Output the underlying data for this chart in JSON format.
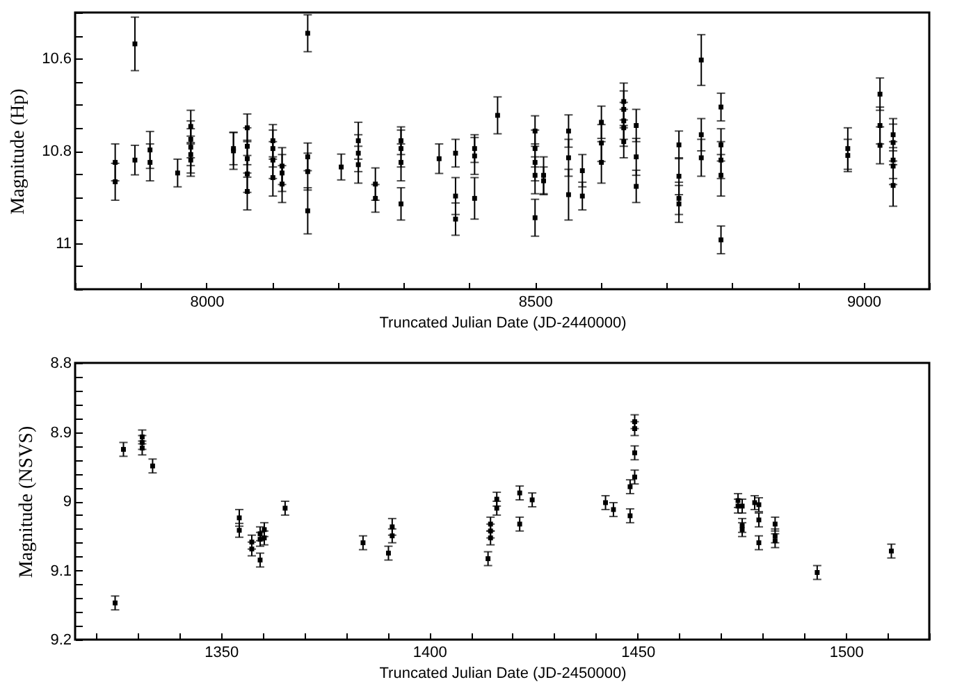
{
  "chart_data": [
    {
      "type": "scatter",
      "xlabel": "Truncated Julian Date (JD-2440000)",
      "ylabel": "Magnitude (Hp)",
      "marker": "square",
      "xlim": [
        7800,
        9100
      ],
      "ylim": [
        11.1,
        10.5
      ],
      "xticks": [
        {
          "value": 7800,
          "label": null
        },
        {
          "value": 7900,
          "label": null
        },
        8000,
        {
          "value": 8100,
          "label": null
        },
        {
          "value": 8200,
          "label": null
        },
        {
          "value": 8300,
          "label": null
        },
        {
          "value": 8400,
          "label": null
        },
        8500,
        {
          "value": 8600,
          "label": null
        },
        {
          "value": 8700,
          "label": null
        },
        {
          "value": 8800,
          "label": null
        },
        {
          "value": 8900,
          "label": null
        },
        9000,
        {
          "value": 9100,
          "label": null
        }
      ],
      "yticks": [
        {
          "value": 10.5,
          "label": null
        },
        {
          "value": 10.55,
          "label": null
        },
        10.6,
        {
          "value": 10.65,
          "label": null
        },
        {
          "value": 10.7,
          "label": null
        },
        {
          "value": 10.75,
          "label": null
        },
        10.8,
        {
          "value": 10.85,
          "label": null
        },
        {
          "value": 10.9,
          "label": null
        },
        {
          "value": 10.95,
          "label": null
        },
        11,
        {
          "value": 11.05,
          "label": null
        },
        {
          "value": 11.1,
          "label": null
        }
      ],
      "series": [
        {
          "color": "#000000",
          "x": [
            7861,
            7861,
            7891,
            7891,
            7914,
            7914,
            7956,
            7976,
            7976,
            7976,
            7976,
            7976,
            8041,
            8041,
            8062,
            8062,
            8062,
            8062,
            8062,
            8101,
            8101,
            8101,
            8101,
            8115,
            8115,
            8115,
            8154,
            8154,
            8154,
            8154,
            8205,
            8231,
            8231,
            8231,
            8257,
            8257,
            8296,
            8296,
            8296,
            8296,
            8354,
            8379,
            8379,
            8379,
            8408,
            8408,
            8408,
            8443,
            8500,
            8500,
            8500,
            8500,
            8500,
            8513,
            8513,
            8551,
            8551,
            8551,
            8572,
            8572,
            8601,
            8601,
            8601,
            8635,
            8635,
            8635,
            8635,
            8635,
            8654,
            8654,
            8654,
            8719,
            8719,
            8719,
            8719,
            8753,
            8753,
            8753,
            8783,
            8783,
            8783,
            8783,
            8783,
            8976,
            8976,
            9025,
            9025,
            9025,
            9045,
            9045,
            9045,
            9045,
            9045
          ],
          "values": [
            10.825,
            10.867,
            10.568,
            10.82,
            10.798,
            10.825,
            10.848,
            10.747,
            10.775,
            10.792,
            10.808,
            10.82,
            10.795,
            10.8,
            10.75,
            10.79,
            10.817,
            10.85,
            10.888,
            10.778,
            10.795,
            10.82,
            10.858,
            10.833,
            10.848,
            10.872,
            10.545,
            10.813,
            10.845,
            10.93,
            10.835,
            10.778,
            10.805,
            10.83,
            10.872,
            10.903,
            10.778,
            10.795,
            10.825,
            10.915,
            10.817,
            10.805,
            10.898,
            10.948,
            10.795,
            10.811,
            10.903,
            10.723,
            10.757,
            10.795,
            10.825,
            10.853,
            10.945,
            10.853,
            10.865,
            10.757,
            10.815,
            10.895,
            10.843,
            10.898,
            10.738,
            10.783,
            10.825,
            10.693,
            10.71,
            10.735,
            10.75,
            10.78,
            10.745,
            10.813,
            10.877,
            10.787,
            10.855,
            10.903,
            10.915,
            10.603,
            10.765,
            10.815,
            10.705,
            10.787,
            10.82,
            10.853,
            10.993,
            10.795,
            10.81,
            10.677,
            10.745,
            10.788,
            10.765,
            10.782,
            10.82,
            10.833,
            10.875
          ],
          "errors": [
            0.04,
            0.04,
            0.058,
            0.032,
            0.04,
            0.04,
            0.03,
            0.035,
            0.04,
            0.04,
            0.04,
            0.035,
            0.035,
            0.04,
            0.03,
            0.04,
            0.04,
            0.04,
            0.04,
            0.035,
            0.04,
            0.04,
            0.04,
            0.04,
            0.04,
            0.04,
            0.04,
            0.03,
            0.04,
            0.05,
            0.028,
            0.04,
            0.04,
            0.04,
            0.035,
            0.03,
            0.03,
            0.04,
            0.04,
            0.035,
            0.032,
            0.03,
            0.04,
            0.035,
            0.03,
            0.04,
            0.045,
            0.04,
            0.033,
            0.04,
            0.04,
            0.04,
            0.04,
            0.04,
            0.03,
            0.035,
            0.04,
            0.055,
            0.035,
            0.03,
            0.035,
            0.04,
            0.045,
            0.04,
            0.04,
            0.04,
            0.04,
            0.035,
            0.035,
            0.04,
            0.035,
            0.03,
            0.04,
            0.035,
            0.04,
            0.055,
            0.035,
            0.04,
            0.03,
            0.035,
            0.04,
            0.045,
            0.03,
            0.045,
            0.035,
            0.035,
            0.04,
            0.04,
            0.035,
            0.04,
            0.04,
            0.04,
            0.045
          ]
        }
      ]
    },
    {
      "type": "scatter",
      "xlabel": "Truncated Julian Date (JD-2450000)",
      "ylabel": "Magnitude (NSVS)",
      "marker": "square",
      "xlim": [
        1315,
        1520
      ],
      "ylim": [
        9.2,
        8.8
      ],
      "xticks": [
        {
          "value": 1320,
          "label": null
        },
        {
          "value": 1330,
          "label": null
        },
        {
          "value": 1340,
          "label": null
        },
        1350,
        {
          "value": 1360,
          "label": null
        },
        {
          "value": 1370,
          "label": null
        },
        {
          "value": 1380,
          "label": null
        },
        {
          "value": 1390,
          "label": null
        },
        1400,
        {
          "value": 1410,
          "label": null
        },
        {
          "value": 1420,
          "label": null
        },
        {
          "value": 1430,
          "label": null
        },
        {
          "value": 1440,
          "label": null
        },
        1450,
        {
          "value": 1460,
          "label": null
        },
        {
          "value": 1470,
          "label": null
        },
        {
          "value": 1480,
          "label": null
        },
        {
          "value": 1490,
          "label": null
        },
        1500,
        {
          "value": 1510,
          "label": null
        },
        {
          "value": 1520,
          "label": null
        }
      ],
      "yticks": [
        8.8,
        {
          "value": 8.82,
          "label": null
        },
        {
          "value": 8.84,
          "label": null
        },
        {
          "value": 8.86,
          "label": null
        },
        {
          "value": 8.88,
          "label": null
        },
        8.9,
        {
          "value": 8.92,
          "label": null
        },
        {
          "value": 8.94,
          "label": null
        },
        {
          "value": 8.96,
          "label": null
        },
        {
          "value": 8.98,
          "label": null
        },
        9,
        {
          "value": 9.02,
          "label": null
        },
        {
          "value": 9.04,
          "label": null
        },
        {
          "value": 9.06,
          "label": null
        },
        {
          "value": 9.08,
          "label": null
        },
        9.1,
        {
          "value": 9.12,
          "label": null
        },
        {
          "value": 9.14,
          "label": null
        },
        {
          "value": 9.16,
          "label": null
        },
        {
          "value": 9.18,
          "label": null
        },
        9.2
      ],
      "series": [
        {
          "color": "#000000",
          "x": [
            1324.6,
            1326.6,
            1331.1,
            1331.1,
            1331.1,
            1333.6,
            1354.4,
            1354.4,
            1357.4,
            1357.4,
            1359.4,
            1359.4,
            1359.4,
            1360.4,
            1360.4,
            1365.4,
            1384.1,
            1390.2,
            1391.1,
            1391.1,
            1414.1,
            1414.7,
            1414.7,
            1414.7,
            1416.2,
            1416.2,
            1421.7,
            1421.7,
            1424.7,
            1442.3,
            1444.2,
            1448.2,
            1448.2,
            1449.3,
            1449.3,
            1449.3,
            1449.3,
            1474.1,
            1474.1,
            1475.1,
            1475.1,
            1475.1,
            1478.1,
            1479.1,
            1479.1,
            1479.1,
            1483,
            1483,
            1483,
            1493.1,
            1510.9
          ],
          "values": [
            9.147,
            8.925,
            8.907,
            8.915,
            8.923,
            8.949,
            9.024,
            9.042,
            9.059,
            9.069,
            9.047,
            9.055,
            9.085,
            9.041,
            9.053,
            9.01,
            9.06,
            9.075,
            9.037,
            9.05,
            9.083,
            9.033,
            9.043,
            9.053,
            8.997,
            9.01,
            8.988,
            9.033,
            8.998,
            9.002,
            9.012,
            8.979,
            9.021,
            8.885,
            8.895,
            8.93,
            8.965,
            8.999,
            9.007,
            9.007,
            9.035,
            9.041,
            9.002,
            9.005,
            9.027,
            9.06,
            9.033,
            9.05,
            9.057,
            9.103,
            9.072
          ],
          "errors": [
            0.01,
            0.01,
            0.01,
            0.01,
            0.01,
            0.01,
            0.012,
            0.01,
            0.01,
            0.01,
            0.01,
            0.01,
            0.01,
            0.01,
            0.01,
            0.01,
            0.01,
            0.01,
            0.012,
            0.01,
            0.01,
            0.01,
            0.01,
            0.01,
            0.01,
            0.01,
            0.01,
            0.01,
            0.01,
            0.01,
            0.01,
            0.01,
            0.01,
            0.01,
            0.01,
            0.01,
            0.01,
            0.01,
            0.01,
            0.01,
            0.01,
            0.01,
            0.01,
            0.01,
            0.01,
            0.01,
            0.01,
            0.01,
            0.01,
            0.01,
            0.01
          ]
        }
      ]
    }
  ]
}
